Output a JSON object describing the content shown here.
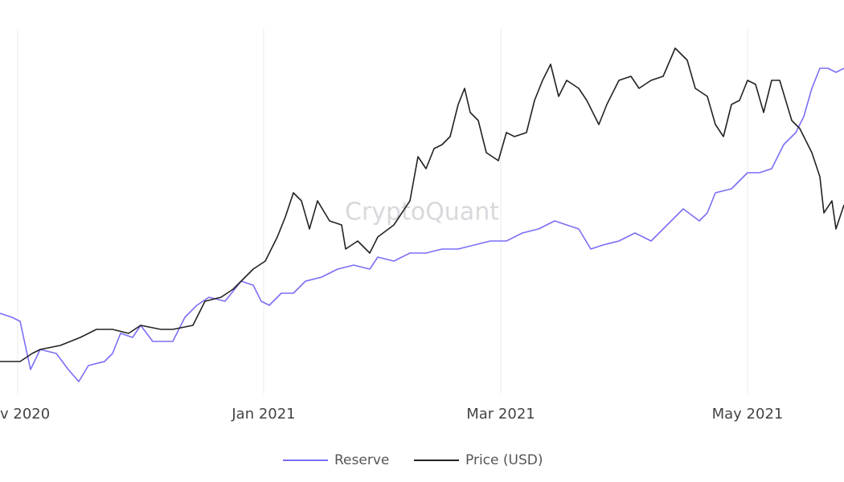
{
  "chart_data": {
    "type": "line",
    "watermark": "CryptoQuant",
    "xlim": [
      0,
      210
    ],
    "ylim": [
      0,
      455
    ],
    "xticks": [
      {
        "value": 4.4,
        "label": "v 2020"
      },
      {
        "value": 65.6,
        "label": "Jan 2021"
      },
      {
        "value": 124.6,
        "label": "Mar 2021"
      },
      {
        "value": 186,
        "label": "May 2021"
      }
    ],
    "grid": true,
    "legend": "bottom",
    "series": [
      {
        "name": "Reserve",
        "color": "#7b6ef6",
        "x": [
          0,
          3,
          5,
          7.6,
          10,
          14,
          17,
          19.6,
          22,
          26,
          28,
          30,
          33,
          35,
          38,
          43,
          46,
          49,
          52,
          56,
          60,
          63,
          65,
          67,
          70,
          73,
          76,
          80,
          84,
          88,
          92,
          94,
          98,
          102,
          106,
          110,
          114,
          118,
          122,
          126,
          130,
          134,
          138,
          141,
          144,
          147,
          150,
          154,
          158,
          162,
          165,
          167,
          170,
          174,
          176,
          178,
          182,
          186,
          189,
          192,
          195,
          198,
          200,
          202,
          204,
          206,
          208,
          210
        ],
        "values": [
          100,
          95,
          90,
          30,
          55,
          50,
          30,
          15,
          35,
          40,
          50,
          75,
          70,
          85,
          65,
          65,
          95,
          110,
          120,
          115,
          140,
          135,
          115,
          110,
          125,
          125,
          140,
          145,
          155,
          160,
          155,
          170,
          165,
          175,
          175,
          180,
          180,
          185,
          190,
          190,
          200,
          205,
          215,
          210,
          205,
          180,
          185,
          190,
          200,
          190,
          205,
          215,
          230,
          215,
          225,
          250,
          255,
          275,
          275,
          280,
          310,
          325,
          345,
          380,
          405,
          405,
          400,
          405
        ]
      },
      {
        "name": "Price (USD)",
        "color": "#222222",
        "x": [
          0,
          5,
          8,
          10,
          15,
          20,
          24,
          28,
          32,
          35,
          40,
          43,
          48,
          51,
          55,
          58,
          60,
          63,
          66,
          69,
          71,
          73,
          75,
          77,
          79,
          82,
          85,
          86,
          89,
          92,
          94,
          98,
          102,
          104,
          106,
          108,
          110,
          112,
          114,
          115.6,
          117,
          119,
          121,
          124,
          126,
          128,
          131,
          133,
          135,
          137,
          139,
          141,
          144,
          146,
          149,
          151,
          154,
          157,
          159,
          162,
          165,
          168,
          171,
          173,
          176,
          178,
          180,
          182,
          184,
          186,
          188,
          190,
          192,
          194,
          197,
          199,
          202,
          204,
          205,
          207,
          208,
          210
        ],
        "values": [
          40,
          40,
          50,
          55,
          60,
          70,
          80,
          80,
          75,
          85,
          80,
          80,
          85,
          115,
          120,
          130,
          140,
          155,
          165,
          195,
          220,
          250,
          240,
          205,
          240,
          215,
          210,
          180,
          190,
          175,
          195,
          210,
          240,
          295,
          280,
          305,
          310,
          320,
          360,
          380,
          350,
          340,
          300,
          290,
          325,
          320,
          325,
          365,
          390,
          410,
          370,
          390,
          380,
          365,
          335,
          360,
          390,
          395,
          380,
          390,
          395,
          430,
          415,
          380,
          370,
          335,
          320,
          360,
          365,
          390,
          385,
          350,
          390,
          390,
          340,
          330,
          300,
          270,
          225,
          240,
          205,
          235
        ]
      }
    ]
  }
}
